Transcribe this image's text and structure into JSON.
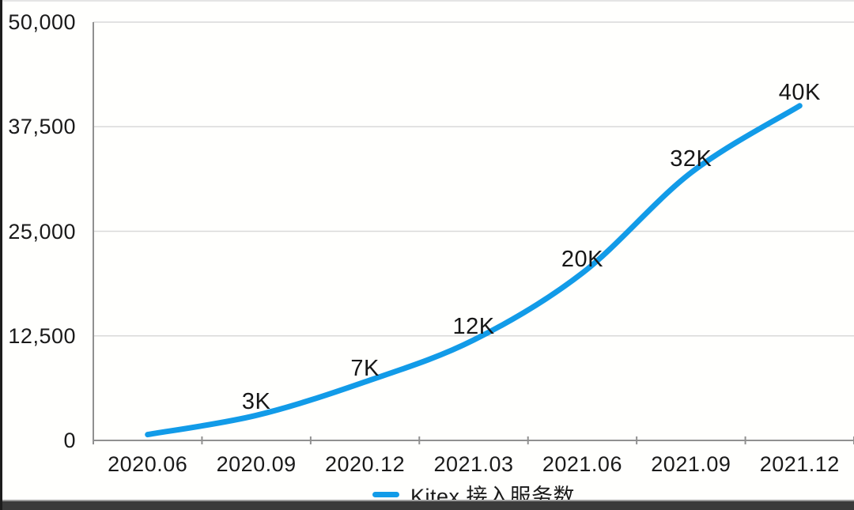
{
  "chart_data": {
    "type": "line",
    "categories": [
      "2020.06",
      "2020.09",
      "2020.12",
      "2021.03",
      "2021.06",
      "2021.09",
      "2021.12"
    ],
    "series": [
      {
        "name": "Kitex 接入服务数",
        "values": [
          700,
          3000,
          7000,
          12000,
          20000,
          32000,
          40000
        ],
        "point_labels": [
          "",
          "3K",
          "7K",
          "12K",
          "20K",
          "32K",
          "40K"
        ],
        "color": "#129be8"
      }
    ],
    "ylim": [
      0,
      50000
    ],
    "y_ticks": [
      0,
      12500,
      25000,
      37500,
      50000
    ],
    "y_tick_labels": [
      "0",
      "12,500",
      "25,000",
      "37,500",
      "50,000"
    ],
    "grid": "horizontal",
    "legend_position": "bottom"
  },
  "colors": {
    "line": "#129be8",
    "gridline": "#d9d9d9",
    "axis": "#909090",
    "text": "#1a1a1a"
  }
}
